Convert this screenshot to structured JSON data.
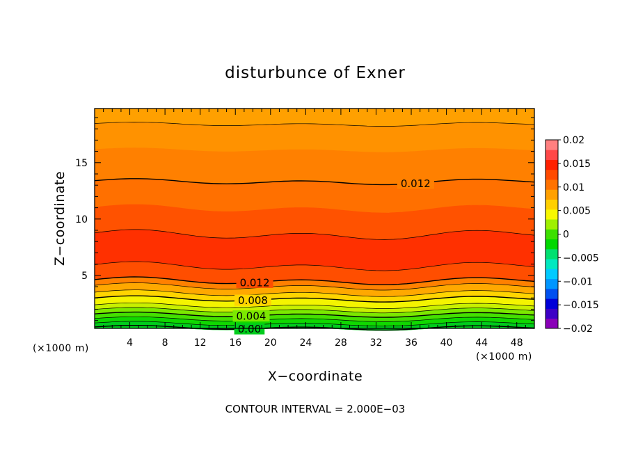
{
  "chart_data": {
    "type": "heatmap",
    "title": "disturbunce of Exner",
    "xlabel": "X−coordinate",
    "ylabel": "Z−coordinate",
    "x_unit": "(×1000 m)",
    "y_unit": "(×1000 m)",
    "footer": "CONTOUR INTERVAL = 2.000E−03",
    "xlim": [
      0,
      50
    ],
    "ylim": [
      0.3,
      19.8
    ],
    "x_ticks": [
      4,
      8,
      12,
      16,
      20,
      24,
      28,
      32,
      36,
      40,
      44,
      48
    ],
    "y_ticks": [
      5,
      10,
      15
    ],
    "x_tick_labels": [
      "4",
      "8",
      "12",
      "16",
      "20",
      "24",
      "28",
      "32",
      "36",
      "40",
      "44",
      "48"
    ],
    "y_tick_labels": [
      "5",
      "10",
      "15"
    ],
    "contour_interval": 0.002,
    "colorbar": {
      "min": -0.02,
      "max": 0.02,
      "ticks": [
        0.02,
        0.015,
        0.01,
        0.005,
        0,
        -0.005,
        -0.01,
        -0.015,
        -0.02
      ],
      "tick_labels": [
        "0.02",
        "0.015",
        "0.01",
        "0.005",
        "0",
        "−0.005",
        "−0.01",
        "−0.015",
        "−0.02"
      ],
      "colors": [
        "#8a00b8",
        "#3d00c6",
        "#0000d8",
        "#0050f0",
        "#0096ff",
        "#00caff",
        "#00e8c0",
        "#00e070",
        "#00d800",
        "#3ce000",
        "#9ff000",
        "#f8f800",
        "#ffd000",
        "#ffa000",
        "#ff7200",
        "#ff4a00",
        "#ff2000",
        "#ff4848",
        "#ff8080"
      ]
    },
    "bands_from_top": [
      {
        "value": 0.011,
        "color": "#ffa000",
        "bottom_z": 18.4
      },
      {
        "value": 0.012,
        "color": "#ff9200",
        "bottom_z": 16.1
      },
      {
        "value": 0.0125,
        "color": "#ff8000",
        "bottom_z": 13.3
      },
      {
        "value": 0.0135,
        "color": "#ff7000",
        "bottom_z": 10.9
      },
      {
        "value": 0.0145,
        "color": "#ff5200",
        "bottom_z": 8.6
      },
      {
        "value": 0.0155,
        "color": "#ff3000",
        "bottom_z": 5.8
      },
      {
        "value": 0.0145,
        "color": "#ff4e00",
        "bottom_z": 4.5
      },
      {
        "value": 0.0125,
        "color": "#ff8000",
        "bottom_z": 4.0
      },
      {
        "value": 0.011,
        "color": "#ffa800",
        "bottom_z": 3.4
      },
      {
        "value": 0.009,
        "color": "#ffd400",
        "bottom_z": 2.9
      },
      {
        "value": 0.007,
        "color": "#f4f400",
        "bottom_z": 2.3
      },
      {
        "value": 0.0055,
        "color": "#c8f000",
        "bottom_z": 1.9
      },
      {
        "value": 0.004,
        "color": "#7ce800",
        "bottom_z": 1.5
      },
      {
        "value": 0.003,
        "color": "#44e000",
        "bottom_z": 1.1
      },
      {
        "value": 0.0015,
        "color": "#10d800",
        "bottom_z": 0.7
      },
      {
        "value": 0.0,
        "color": "#00cc1c",
        "bottom_z": 0.3
      }
    ],
    "contours": [
      {
        "z": 18.4,
        "bold": false
      },
      {
        "z": 13.3,
        "bold": true
      },
      {
        "z": 8.6,
        "bold": false
      },
      {
        "z": 5.8,
        "bold": false
      },
      {
        "z": 4.5,
        "bold": true
      },
      {
        "z": 4.0,
        "bold": false
      },
      {
        "z": 3.4,
        "bold": false
      },
      {
        "z": 2.9,
        "bold": true
      },
      {
        "z": 2.3,
        "bold": false
      },
      {
        "z": 1.9,
        "bold": false
      },
      {
        "z": 1.5,
        "bold": true
      },
      {
        "z": 1.1,
        "bold": false
      },
      {
        "z": 0.7,
        "bold": false
      },
      {
        "z": 0.35,
        "bold": true
      }
    ],
    "contour_labels": [
      {
        "text": "0.012",
        "x": 36.5,
        "z": 13.3
      },
      {
        "text": "0.012",
        "x": 18.2,
        "z": 4.5
      },
      {
        "text": "0.008",
        "x": 18.0,
        "z": 2.9
      },
      {
        "text": "0.004",
        "x": 17.8,
        "z": 1.5
      },
      {
        "text": "0.00",
        "x": 17.6,
        "z": 0.35
      }
    ]
  }
}
